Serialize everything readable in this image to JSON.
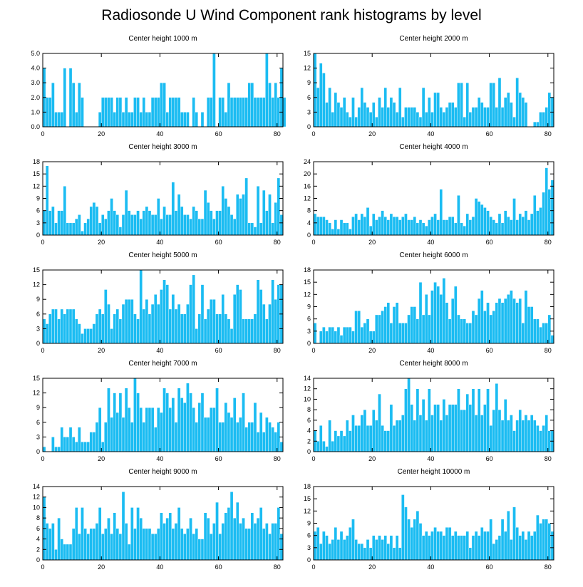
{
  "title": "Radiosonde U Wind Component rank histograms by level",
  "bar_color": "#1bbcf2",
  "chart_data": [
    {
      "type": "bar",
      "title": "Center height 1000 m",
      "x_start": 0,
      "xlim": [
        0,
        82
      ],
      "xticks": [
        0,
        20,
        40,
        60,
        80
      ],
      "ylim": [
        0,
        5.0
      ],
      "yticks": [
        "0.0",
        "1.0",
        "2.0",
        "3.0",
        "4.0",
        "5.0"
      ],
      "values": [
        4,
        2,
        2,
        3,
        1,
        1,
        1,
        4,
        0,
        4,
        3,
        1,
        3,
        2,
        0,
        0,
        0,
        0,
        0,
        1,
        2,
        2,
        2,
        2,
        1,
        2,
        2,
        1,
        2,
        1,
        1,
        2,
        2,
        1,
        2,
        1,
        1,
        2,
        2,
        2,
        3,
        3,
        1,
        2,
        2,
        2,
        2,
        1,
        1,
        1,
        0,
        2,
        1,
        0,
        1,
        0,
        2,
        2,
        5,
        0,
        2,
        2,
        1,
        3,
        2,
        2,
        2,
        2,
        2,
        2,
        3,
        3,
        2,
        2,
        2,
        2,
        5,
        3,
        2,
        3,
        2,
        4,
        2
      ]
    },
    {
      "type": "bar",
      "title": "Center height 2000 m",
      "x_start": 0,
      "xlim": [
        0,
        82
      ],
      "xticks": [
        0,
        20,
        40,
        60,
        80
      ],
      "ylim": [
        0,
        15
      ],
      "yticks": [
        "0",
        "3",
        "6",
        "9",
        "12",
        "15"
      ],
      "values": [
        15,
        8,
        13,
        11,
        5,
        8,
        3,
        7,
        5,
        4,
        6,
        3,
        2,
        6,
        2,
        4,
        8,
        5,
        4,
        3,
        5,
        2,
        6,
        4,
        8,
        4,
        6,
        5,
        3,
        8,
        2,
        4,
        4,
        4,
        4,
        3,
        2,
        8,
        3,
        6,
        3,
        7,
        7,
        4,
        3,
        4,
        5,
        5,
        4,
        9,
        9,
        2,
        9,
        3,
        4,
        4,
        6,
        5,
        4,
        4,
        9,
        9,
        4,
        10,
        4,
        6,
        7,
        5,
        2,
        10,
        7,
        6,
        5,
        0,
        0,
        1,
        1,
        3,
        3,
        4,
        7,
        6
      ]
    },
    {
      "type": "bar",
      "title": "Center height 3000 m",
      "x_start": 0,
      "xlim": [
        0,
        82
      ],
      "xticks": [
        0,
        20,
        40,
        60,
        80
      ],
      "ylim": [
        0,
        18
      ],
      "yticks": [
        "0",
        "3",
        "6",
        "9",
        "12",
        "15",
        "18"
      ],
      "values": [
        6,
        17,
        6,
        7,
        3,
        6,
        6,
        12,
        3,
        3,
        3,
        4,
        5,
        1,
        3,
        4,
        7,
        8,
        7,
        3,
        5,
        4,
        6,
        9,
        6,
        5,
        2,
        5,
        11,
        6,
        5,
        5,
        6,
        4,
        6,
        7,
        6,
        5,
        5,
        9,
        4,
        7,
        5,
        5,
        13,
        6,
        10,
        7,
        5,
        5,
        4,
        7,
        6,
        4,
        4,
        11,
        8,
        6,
        4,
        6,
        6,
        12,
        9,
        7,
        5,
        4,
        10,
        9,
        10,
        14,
        3,
        3,
        2,
        12,
        3,
        11,
        6,
        10,
        3,
        8,
        14,
        5
      ]
    },
    {
      "type": "bar",
      "title": "Center height 4000 m",
      "x_start": 0,
      "xlim": [
        0,
        82
      ],
      "xticks": [
        0,
        20,
        40,
        60,
        80
      ],
      "ylim": [
        0,
        24
      ],
      "yticks": [
        "0",
        "4",
        "8",
        "12",
        "16",
        "20",
        "24"
      ],
      "values": [
        7,
        6,
        6,
        6,
        5,
        4,
        2,
        5,
        2,
        5,
        4,
        4,
        2,
        6,
        7,
        5,
        7,
        6,
        9,
        3,
        7,
        5,
        6,
        8,
        6,
        5,
        7,
        6,
        6,
        5,
        6,
        7,
        5,
        5,
        6,
        4,
        5,
        4,
        3,
        5,
        6,
        7,
        5,
        15,
        5,
        5,
        6,
        6,
        4,
        13,
        4,
        3,
        7,
        5,
        6,
        12,
        11,
        10,
        9,
        8,
        6,
        5,
        4,
        7,
        4,
        8,
        6,
        5,
        12,
        5,
        7,
        6,
        8,
        5,
        7,
        13,
        8,
        9,
        14,
        22,
        15,
        18
      ]
    },
    {
      "type": "bar",
      "title": "Center height 5000 m",
      "x_start": 0,
      "xlim": [
        0,
        82
      ],
      "xticks": [
        0,
        20,
        40,
        60,
        80
      ],
      "ylim": [
        0,
        15
      ],
      "yticks": [
        "0",
        "3",
        "6",
        "9",
        "12",
        "15"
      ],
      "values": [
        5,
        4,
        6,
        7,
        7,
        5,
        7,
        6,
        7,
        7,
        7,
        5,
        4,
        2,
        3,
        3,
        3,
        4,
        6,
        7,
        6,
        11,
        8,
        3,
        6,
        7,
        5,
        8,
        9,
        9,
        9,
        6,
        5,
        15,
        7,
        9,
        6,
        8,
        10,
        8,
        11,
        13,
        12,
        7,
        10,
        7,
        8,
        6,
        6,
        8,
        12,
        14,
        3,
        6,
        12,
        5,
        7,
        9,
        9,
        6,
        6,
        10,
        6,
        5,
        3,
        10,
        12,
        11,
        5,
        5,
        5,
        5,
        6,
        13,
        11,
        8,
        5,
        8,
        13,
        9,
        12,
        12
      ]
    },
    {
      "type": "bar",
      "title": "Center height 6000 m",
      "x_start": 0,
      "xlim": [
        0,
        82
      ],
      "xticks": [
        0,
        20,
        40,
        60,
        80
      ],
      "ylim": [
        0,
        18
      ],
      "yticks": [
        "0",
        "3",
        "6",
        "9",
        "12",
        "15",
        "18"
      ],
      "values": [
        5,
        0,
        3,
        4,
        3,
        4,
        4,
        3,
        4,
        2,
        4,
        4,
        4,
        3,
        8,
        8,
        4,
        5,
        6,
        3,
        3,
        7,
        7,
        8,
        9,
        10,
        5,
        9,
        10,
        5,
        5,
        5,
        7,
        9,
        9,
        6,
        15,
        7,
        12,
        7,
        13,
        15,
        14,
        12,
        16,
        10,
        6,
        11,
        14,
        7,
        6,
        6,
        5,
        5,
        8,
        7,
        11,
        13,
        8,
        10,
        7,
        8,
        10,
        11,
        10,
        11,
        12,
        13,
        11,
        10,
        11,
        5,
        13,
        9,
        9,
        6,
        6,
        4,
        5,
        5,
        7,
        2
      ]
    },
    {
      "type": "bar",
      "title": "Center height 7000 m",
      "x_start": 0,
      "xlim": [
        0,
        82
      ],
      "xticks": [
        0,
        20,
        40,
        60,
        80
      ],
      "ylim": [
        0,
        15
      ],
      "yticks": [
        "0",
        "3",
        "6",
        "9",
        "12",
        "15"
      ],
      "values": [
        1,
        0,
        0,
        3,
        1,
        1,
        5,
        3,
        3,
        5,
        3,
        2,
        5,
        2,
        2,
        2,
        4,
        4,
        6,
        9,
        2,
        6,
        13,
        7,
        12,
        8,
        12,
        7,
        13,
        9,
        6,
        15,
        12,
        9,
        6,
        9,
        9,
        9,
        5,
        9,
        8,
        13,
        12,
        9,
        11,
        6,
        13,
        11,
        10,
        14,
        12,
        9,
        6,
        10,
        12,
        7,
        7,
        9,
        9,
        13,
        6,
        6,
        10,
        8,
        7,
        11,
        6,
        7,
        12,
        5,
        6,
        6,
        10,
        4,
        8,
        4,
        7,
        6,
        5,
        4,
        6,
        2
      ]
    },
    {
      "type": "bar",
      "title": "Center height 8000 m",
      "x_start": 0,
      "xlim": [
        0,
        82
      ],
      "xticks": [
        0,
        20,
        40,
        60,
        80
      ],
      "ylim": [
        0,
        14
      ],
      "yticks": [
        "0",
        "2",
        "4",
        "6",
        "8",
        "10",
        "12",
        "14"
      ],
      "values": [
        4,
        2,
        5,
        2,
        1,
        6,
        2,
        4,
        3,
        4,
        3,
        6,
        4,
        7,
        5,
        5,
        7,
        8,
        5,
        5,
        8,
        6,
        11,
        5,
        4,
        4,
        9,
        5,
        6,
        6,
        7,
        12,
        14,
        9,
        6,
        12,
        7,
        10,
        6,
        12,
        7,
        9,
        9,
        6,
        10,
        7,
        9,
        9,
        9,
        12,
        8,
        8,
        11,
        9,
        12,
        7,
        12,
        7,
        9,
        12,
        5,
        8,
        13,
        8,
        6,
        10,
        6,
        7,
        4,
        6,
        8,
        6,
        7,
        6,
        7,
        6,
        5,
        4,
        5,
        7,
        4,
        4
      ]
    },
    {
      "type": "bar",
      "title": "Center height 9000 m",
      "x_start": 0,
      "xlim": [
        0,
        82
      ],
      "xticks": [
        0,
        20,
        40,
        60,
        80
      ],
      "ylim": [
        0,
        14
      ],
      "yticks": [
        "0",
        "2",
        "4",
        "6",
        "8",
        "10",
        "12",
        "14"
      ],
      "values": [
        12,
        7,
        6,
        7,
        2,
        8,
        4,
        3,
        3,
        3,
        6,
        10,
        5,
        10,
        6,
        5,
        6,
        6,
        7,
        10,
        5,
        6,
        8,
        5,
        9,
        6,
        5,
        13,
        7,
        3,
        10,
        6,
        10,
        8,
        6,
        6,
        6,
        5,
        5,
        6,
        9,
        7,
        8,
        9,
        6,
        7,
        10,
        6,
        5,
        6,
        8,
        5,
        6,
        4,
        4,
        9,
        8,
        5,
        7,
        11,
        5,
        7,
        9,
        10,
        13,
        8,
        11,
        7,
        8,
        6,
        6,
        9,
        7,
        8,
        10,
        6,
        7,
        5,
        7,
        7,
        10,
        5
      ]
    },
    {
      "type": "bar",
      "title": "Center height 10000 m",
      "x_start": 0,
      "xlim": [
        0,
        82
      ],
      "xticks": [
        0,
        20,
        40,
        60,
        80
      ],
      "ylim": [
        0,
        18
      ],
      "yticks": [
        "0",
        "3",
        "6",
        "9",
        "12",
        "15",
        "18"
      ],
      "values": [
        7,
        8,
        4,
        7,
        6,
        4,
        5,
        8,
        5,
        7,
        5,
        6,
        8,
        10,
        5,
        4,
        4,
        3,
        5,
        3,
        6,
        5,
        6,
        5,
        6,
        4,
        6,
        3,
        6,
        3,
        16,
        13,
        10,
        8,
        10,
        12,
        9,
        6,
        7,
        6,
        7,
        8,
        7,
        7,
        6,
        8,
        8,
        6,
        7,
        6,
        6,
        6,
        7,
        3,
        6,
        7,
        6,
        8,
        7,
        7,
        10,
        4,
        5,
        6,
        10,
        7,
        12,
        5,
        13,
        8,
        6,
        7,
        5,
        7,
        6,
        7,
        11,
        9,
        10,
        10,
        9,
        7
      ]
    }
  ]
}
